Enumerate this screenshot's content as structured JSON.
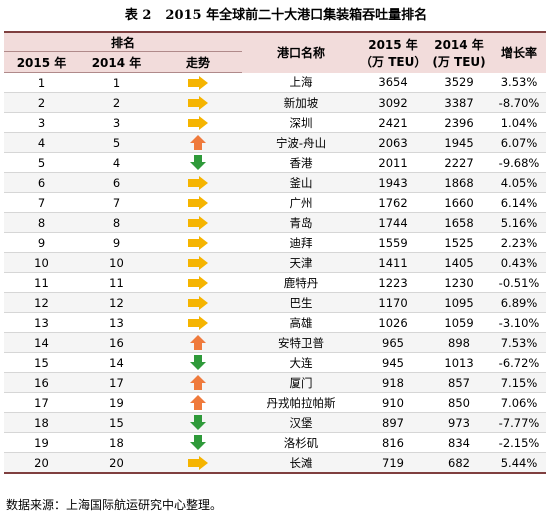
{
  "table_title": "表 2",
  "table_caption": "2015 年全球前二十大港口集装箱吞吐量排名",
  "headers": {
    "rank": "排名",
    "y2015": "2015 年",
    "y2014": "2014 年",
    "trend": "走势",
    "port": "港口名称",
    "teu2015_line1": "2015 年",
    "teu2015_line2": "（万 TEU）",
    "teu2014_line1": "2014 年",
    "teu2014_line2": "(万 TEU)",
    "growth": "增长率"
  },
  "colors": {
    "steady": "#f5b400",
    "up": "#ef7a3c",
    "down": "#2f9a3a"
  },
  "rows": [
    {
      "r2015": "1",
      "r2014": "1",
      "trend": "steady",
      "port": "上海",
      "teu2015": "3654",
      "teu2014": "3529",
      "growth": "3.53%"
    },
    {
      "r2015": "2",
      "r2014": "2",
      "trend": "steady",
      "port": "新加坡",
      "teu2015": "3092",
      "teu2014": "3387",
      "growth": "-8.70%"
    },
    {
      "r2015": "3",
      "r2014": "3",
      "trend": "steady",
      "port": "深圳",
      "teu2015": "2421",
      "teu2014": "2396",
      "growth": "1.04%"
    },
    {
      "r2015": "4",
      "r2014": "5",
      "trend": "up",
      "port": "宁波-舟山",
      "teu2015": "2063",
      "teu2014": "1945",
      "growth": "6.07%"
    },
    {
      "r2015": "5",
      "r2014": "4",
      "trend": "down",
      "port": "香港",
      "teu2015": "2011",
      "teu2014": "2227",
      "growth": "-9.68%"
    },
    {
      "r2015": "6",
      "r2014": "6",
      "trend": "steady",
      "port": "釜山",
      "teu2015": "1943",
      "teu2014": "1868",
      "growth": "4.05%"
    },
    {
      "r2015": "7",
      "r2014": "7",
      "trend": "steady",
      "port": "广州",
      "teu2015": "1762",
      "teu2014": "1660",
      "growth": "6.14%"
    },
    {
      "r2015": "8",
      "r2014": "8",
      "trend": "steady",
      "port": "青岛",
      "teu2015": "1744",
      "teu2014": "1658",
      "growth": "5.16%"
    },
    {
      "r2015": "9",
      "r2014": "9",
      "trend": "steady",
      "port": "迪拜",
      "teu2015": "1559",
      "teu2014": "1525",
      "growth": "2.23%"
    },
    {
      "r2015": "10",
      "r2014": "10",
      "trend": "steady",
      "port": "天津",
      "teu2015": "1411",
      "teu2014": "1405",
      "growth": "0.43%"
    },
    {
      "r2015": "11",
      "r2014": "11",
      "trend": "steady",
      "port": "鹿特丹",
      "teu2015": "1223",
      "teu2014": "1230",
      "growth": "-0.51%"
    },
    {
      "r2015": "12",
      "r2014": "12",
      "trend": "steady",
      "port": "巴生",
      "teu2015": "1170",
      "teu2014": "1095",
      "growth": "6.89%"
    },
    {
      "r2015": "13",
      "r2014": "13",
      "trend": "steady",
      "port": "高雄",
      "teu2015": "1026",
      "teu2014": "1059",
      "growth": "-3.10%"
    },
    {
      "r2015": "14",
      "r2014": "16",
      "trend": "up",
      "port": "安特卫普",
      "teu2015": "965",
      "teu2014": "898",
      "growth": "7.53%"
    },
    {
      "r2015": "15",
      "r2014": "14",
      "trend": "down",
      "port": "大连",
      "teu2015": "945",
      "teu2014": "1013",
      "growth": "-6.72%"
    },
    {
      "r2015": "16",
      "r2014": "17",
      "trend": "up",
      "port": "厦门",
      "teu2015": "918",
      "teu2014": "857",
      "growth": "7.15%"
    },
    {
      "r2015": "17",
      "r2014": "19",
      "trend": "up",
      "port": "丹戎帕拉帕斯",
      "teu2015": "910",
      "teu2014": "850",
      "growth": "7.06%"
    },
    {
      "r2015": "18",
      "r2014": "15",
      "trend": "down",
      "port": "汉堡",
      "teu2015": "897",
      "teu2014": "973",
      "growth": "-7.77%"
    },
    {
      "r2015": "19",
      "r2014": "18",
      "trend": "down",
      "port": "洛杉矶",
      "teu2015": "816",
      "teu2014": "834",
      "growth": "-2.15%"
    },
    {
      "r2015": "20",
      "r2014": "20",
      "trend": "steady",
      "port": "长滩",
      "teu2015": "719",
      "teu2014": "682",
      "growth": "5.44%"
    }
  ],
  "source_note": "数据来源：上海国际航运研究中心整理。"
}
